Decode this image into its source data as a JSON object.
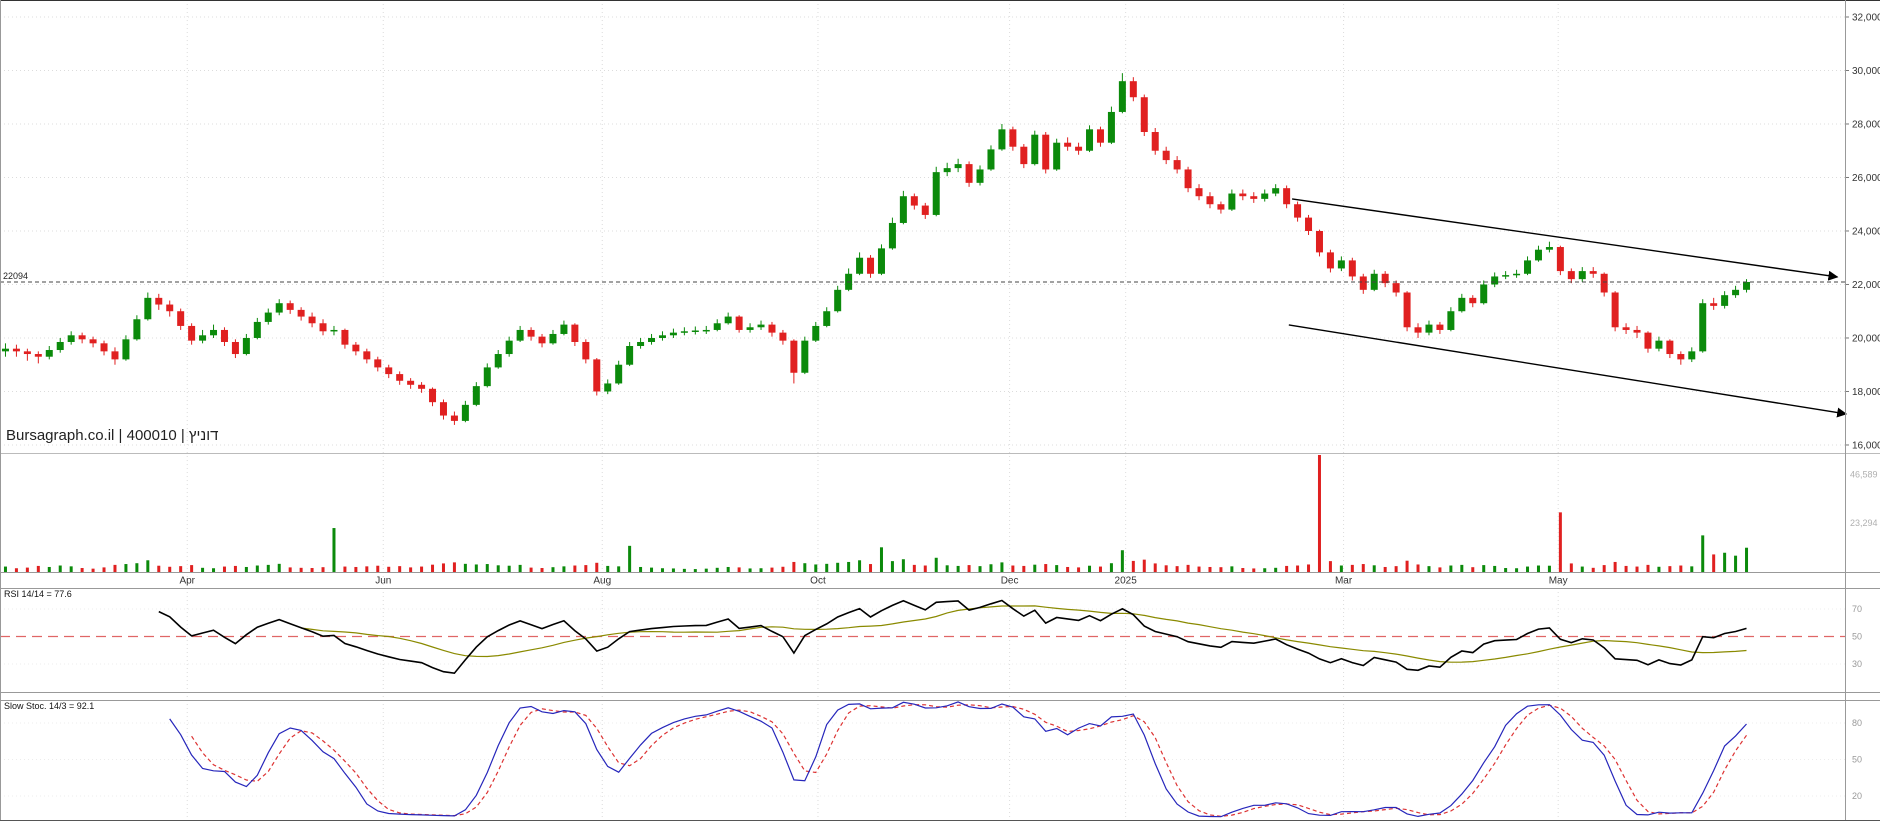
{
  "header": {
    "title": "Bursagraph.co.il | 400010 | דוניץ"
  },
  "colors": {
    "up": "#0b8a0b",
    "down": "#e02020",
    "rsi_line": "#000000",
    "rsi_signal": "#8a8a00",
    "rsi_mid": "#e06666",
    "stoch_k": "#2626bb",
    "stoch_d": "#dd3333",
    "trend": "#000000",
    "grid": "#dcdcdc",
    "marker_line": "#444444"
  },
  "chart_data": {
    "type": "candlestick",
    "title": "Bursagraph.co.il | 400010 | דוניץ",
    "symbol": "400010",
    "security_name": "דוניץ",
    "last_price": 22094,
    "period": "Mar 2024 – Jun 2025, daily candles",
    "ylim": [
      15700,
      32635
    ],
    "panels": [
      "price",
      "volume",
      "rsi",
      "slow_stochastic"
    ],
    "price_axis": [
      {
        "text": "32,000",
        "value": 32000
      },
      {
        "text": "30,000",
        "value": 30000
      },
      {
        "text": "28,000",
        "value": 28000
      },
      {
        "text": "26,000",
        "value": 26000
      },
      {
        "text": "24,000",
        "value": 24000
      },
      {
        "text": "22,000",
        "value": 22000
      },
      {
        "text": "20,000",
        "value": 20000
      },
      {
        "text": "18,000",
        "value": 18000
      },
      {
        "text": "16,000",
        "value": 16000
      }
    ],
    "x_axis": [
      {
        "text": "Apr",
        "i": 16.6
      },
      {
        "text": "Jun",
        "i": 34.5
      },
      {
        "text": "Aug",
        "i": 54.5
      },
      {
        "text": "Oct",
        "i": 74.2
      },
      {
        "text": "Dec",
        "i": 91.7
      },
      {
        "text": "2025",
        "i": 102.3
      },
      {
        "text": "Mar",
        "i": 122.2
      },
      {
        "text": "May",
        "i": 141.8
      }
    ],
    "volume_axis": [
      {
        "text": "46,589",
        "value": 46589
      },
      {
        "text": "23,294",
        "value": 23294
      }
    ],
    "rsi_axis": [
      {
        "text": "70",
        "value": 70
      },
      {
        "text": "50",
        "value": 50
      },
      {
        "text": "30",
        "value": 30
      }
    ],
    "stoch_axis": [
      {
        "text": "80",
        "value": 80
      },
      {
        "text": "50",
        "value": 50
      },
      {
        "text": "20",
        "value": 20
      }
    ],
    "indicators": {
      "rsi": {
        "label": "RSI 14/14 = 77.6",
        "period": 14,
        "signal": 14,
        "last": 77.6
      },
      "slow_stochastic": {
        "label": "Slow Stoc. 14/3 = 92.1",
        "k": 14,
        "d": 3,
        "last": 92.1
      }
    },
    "price_marker": {
      "text": "22094",
      "value": 22094
    },
    "trendlines": [
      {
        "i1": 117.5,
        "p1": 25196,
        "i2": 167.3,
        "p2": 22280,
        "arrow": true
      },
      {
        "i1": 117.2,
        "p1": 20486,
        "i2": 168.1,
        "p2": 17159,
        "arrow": true
      }
    ],
    "candles": [
      [
        19500,
        19800,
        19300,
        19600,
        2600
      ],
      [
        19600,
        19750,
        19300,
        19500,
        1800
      ],
      [
        19500,
        19600,
        19150,
        19400,
        2100
      ],
      [
        19400,
        19500,
        19050,
        19300,
        2900
      ],
      [
        19300,
        19700,
        19200,
        19550,
        2400
      ],
      [
        19550,
        20000,
        19450,
        19850,
        3100
      ],
      [
        19850,
        20250,
        19750,
        20100,
        2700
      ],
      [
        20100,
        20200,
        19800,
        19950,
        1900
      ],
      [
        19950,
        20050,
        19650,
        19800,
        1600
      ],
      [
        19800,
        19900,
        19350,
        19500,
        2200
      ],
      [
        19500,
        19650,
        19000,
        19200,
        3400
      ],
      [
        19200,
        20100,
        19150,
        19950,
        3800
      ],
      [
        19950,
        20850,
        19900,
        20700,
        4200
      ],
      [
        20700,
        21700,
        20650,
        21500,
        5600
      ],
      [
        21500,
        21650,
        21050,
        21250,
        3000
      ],
      [
        21250,
        21400,
        20800,
        21000,
        2500
      ],
      [
        21000,
        21100,
        20300,
        20450,
        2800
      ],
      [
        20450,
        20550,
        19750,
        19900,
        3300
      ],
      [
        19900,
        20300,
        19800,
        20100,
        2000
      ],
      [
        20100,
        20500,
        20000,
        20300,
        1800
      ],
      [
        20300,
        20400,
        19700,
        19850,
        2600
      ],
      [
        19850,
        19950,
        19250,
        19400,
        2900
      ],
      [
        19400,
        20150,
        19350,
        20000,
        2400
      ],
      [
        20000,
        20750,
        19950,
        20600,
        3100
      ],
      [
        20600,
        21100,
        20500,
        20950,
        3400
      ],
      [
        20950,
        21450,
        20850,
        21300,
        3900
      ],
      [
        21300,
        21400,
        20900,
        21050,
        2200
      ],
      [
        21050,
        21150,
        20650,
        20800,
        2000
      ],
      [
        20800,
        20950,
        20400,
        20550,
        1900
      ],
      [
        20550,
        20700,
        20100,
        20250,
        2300
      ],
      [
        20250,
        20450,
        20100,
        20300,
        21000
      ],
      [
        20300,
        20350,
        19600,
        19750,
        2600
      ],
      [
        19750,
        19850,
        19350,
        19500,
        2400
      ],
      [
        19500,
        19600,
        19050,
        19200,
        2700
      ],
      [
        19200,
        19300,
        18750,
        18900,
        3000
      ],
      [
        18900,
        19000,
        18500,
        18650,
        2500
      ],
      [
        18650,
        18750,
        18250,
        18400,
        2800
      ],
      [
        18400,
        18500,
        18100,
        18250,
        2200
      ],
      [
        18250,
        18350,
        17950,
        18100,
        2600
      ],
      [
        18100,
        18150,
        17450,
        17600,
        3500
      ],
      [
        17600,
        17700,
        16950,
        17100,
        4100
      ],
      [
        17100,
        17250,
        16750,
        16900,
        4600
      ],
      [
        16900,
        17650,
        16850,
        17500,
        3900
      ],
      [
        17500,
        18350,
        17450,
        18200,
        3600
      ],
      [
        18200,
        19050,
        18150,
        18900,
        3800
      ],
      [
        18900,
        19550,
        18850,
        19400,
        3200
      ],
      [
        19400,
        20050,
        19300,
        19900,
        3000
      ],
      [
        19900,
        20450,
        19850,
        20300,
        3400
      ],
      [
        20300,
        20400,
        19900,
        20050,
        2100
      ],
      [
        20050,
        20150,
        19650,
        19800,
        1900
      ],
      [
        19800,
        20300,
        19750,
        20150,
        2300
      ],
      [
        20150,
        20650,
        20100,
        20500,
        2700
      ],
      [
        20500,
        20550,
        19700,
        19850,
        3100
      ],
      [
        19850,
        19950,
        19050,
        19200,
        3300
      ],
      [
        19200,
        19250,
        17850,
        18000,
        4400
      ],
      [
        18000,
        18450,
        17900,
        18300,
        2900
      ],
      [
        18300,
        19150,
        18250,
        19000,
        2700
      ],
      [
        19000,
        19850,
        18950,
        19700,
        12500
      ],
      [
        19700,
        20000,
        19600,
        19850,
        2400
      ],
      [
        19850,
        20150,
        19750,
        20000,
        2100
      ],
      [
        20000,
        20250,
        19900,
        20100,
        1800
      ],
      [
        20100,
        20350,
        20000,
        20200,
        1700
      ],
      [
        20200,
        20400,
        20100,
        20250,
        1500
      ],
      [
        20250,
        20430,
        20130,
        20280,
        1400
      ],
      [
        20280,
        20450,
        20150,
        20300,
        1600
      ],
      [
        20300,
        20700,
        20250,
        20550,
        2000
      ],
      [
        20550,
        20950,
        20500,
        20800,
        2400
      ],
      [
        20800,
        20850,
        20200,
        20300,
        2200
      ],
      [
        20300,
        20550,
        20200,
        20400,
        1700
      ],
      [
        20400,
        20650,
        20300,
        20500,
        1800
      ],
      [
        20500,
        20600,
        20050,
        20200,
        2100
      ],
      [
        20200,
        20300,
        19750,
        19900,
        2500
      ],
      [
        19900,
        19950,
        18300,
        18700,
        4800
      ],
      [
        18700,
        20050,
        18650,
        19900,
        4200
      ],
      [
        19900,
        20600,
        19850,
        20450,
        3600
      ],
      [
        20450,
        21150,
        20400,
        21000,
        3900
      ],
      [
        21000,
        21950,
        20950,
        21800,
        4400
      ],
      [
        21800,
        22600,
        21750,
        22400,
        4800
      ],
      [
        22400,
        23200,
        22350,
        23000,
        5600
      ],
      [
        23000,
        23100,
        22250,
        22400,
        3800
      ],
      [
        22400,
        23500,
        22350,
        23350,
        11800
      ],
      [
        23350,
        24500,
        23300,
        24300,
        5200
      ],
      [
        24300,
        25500,
        24250,
        25300,
        6100
      ],
      [
        25300,
        25400,
        24800,
        24950,
        3400
      ],
      [
        24950,
        25050,
        24450,
        24600,
        3100
      ],
      [
        24600,
        26400,
        24550,
        26200,
        6800
      ],
      [
        26200,
        26550,
        26050,
        26350,
        3200
      ],
      [
        26350,
        26700,
        26200,
        26500,
        2900
      ],
      [
        26500,
        26600,
        25650,
        25800,
        3300
      ],
      [
        25800,
        26450,
        25700,
        26300,
        2800
      ],
      [
        26300,
        27200,
        26250,
        27050,
        3700
      ],
      [
        27050,
        28000,
        27000,
        27800,
        4600
      ],
      [
        27800,
        27900,
        27000,
        27150,
        3100
      ],
      [
        27150,
        27250,
        26350,
        26500,
        2900
      ],
      [
        26500,
        27750,
        26450,
        27600,
        3500
      ],
      [
        27600,
        27700,
        26150,
        26300,
        3800
      ],
      [
        26300,
        27450,
        26250,
        27300,
        3300
      ],
      [
        27300,
        27500,
        27000,
        27150,
        2400
      ],
      [
        27150,
        27300,
        26850,
        27000,
        2200
      ],
      [
        27000,
        27950,
        26950,
        27800,
        3000
      ],
      [
        27800,
        27900,
        27150,
        27300,
        2600
      ],
      [
        27300,
        28650,
        27250,
        28450,
        4200
      ],
      [
        28450,
        29900,
        28400,
        29600,
        10400
      ],
      [
        29600,
        29750,
        28850,
        29000,
        5300
      ],
      [
        29000,
        29100,
        27550,
        27700,
        5900
      ],
      [
        27700,
        27850,
        26850,
        27000,
        4100
      ],
      [
        27000,
        27150,
        26500,
        26650,
        3200
      ],
      [
        26650,
        26800,
        26150,
        26300,
        2800
      ],
      [
        26300,
        26400,
        25450,
        25600,
        3400
      ],
      [
        25600,
        25750,
        25150,
        25300,
        2600
      ],
      [
        25300,
        25450,
        24850,
        25000,
        2400
      ],
      [
        25000,
        25100,
        24650,
        24800,
        2300
      ],
      [
        24800,
        25550,
        24750,
        25400,
        2700
      ],
      [
        25400,
        25550,
        25150,
        25300,
        1900
      ],
      [
        25300,
        25450,
        25050,
        25200,
        1700
      ],
      [
        25200,
        25550,
        25100,
        25400,
        1800
      ],
      [
        25400,
        25750,
        25300,
        25600,
        2000
      ],
      [
        25600,
        25700,
        24850,
        25000,
        2900
      ],
      [
        25000,
        25100,
        24350,
        24500,
        3100
      ],
      [
        24500,
        24600,
        23850,
        24000,
        3600
      ],
      [
        24000,
        24050,
        23050,
        23200,
        96000
      ],
      [
        23200,
        23300,
        22450,
        22600,
        5200
      ],
      [
        22600,
        23050,
        22500,
        22900,
        3100
      ],
      [
        22900,
        23000,
        22150,
        22300,
        3400
      ],
      [
        22300,
        22400,
        21650,
        21800,
        3800
      ],
      [
        21800,
        22550,
        21750,
        22400,
        3200
      ],
      [
        22400,
        22500,
        21900,
        22050,
        2400
      ],
      [
        22050,
        22150,
        21550,
        21700,
        2800
      ],
      [
        21700,
        21750,
        20250,
        20400,
        5400
      ],
      [
        20400,
        20550,
        20000,
        20200,
        3600
      ],
      [
        20200,
        20650,
        20100,
        20500,
        2800
      ],
      [
        20500,
        20600,
        20150,
        20300,
        2200
      ],
      [
        20300,
        21150,
        20250,
        21000,
        3100
      ],
      [
        21000,
        21650,
        20950,
        21500,
        3400
      ],
      [
        21500,
        21600,
        21150,
        21300,
        2300
      ],
      [
        21300,
        22150,
        21250,
        22000,
        3300
      ],
      [
        22000,
        22450,
        21900,
        22300,
        2900
      ],
      [
        22300,
        22500,
        22200,
        22350,
        1900
      ],
      [
        22350,
        22550,
        22250,
        22400,
        1800
      ],
      [
        22400,
        23050,
        22350,
        22900,
        2600
      ],
      [
        22900,
        23450,
        22850,
        23300,
        3100
      ],
      [
        23300,
        23600,
        23200,
        23400,
        3000
      ],
      [
        23400,
        23450,
        22350,
        22500,
        28500
      ],
      [
        22500,
        22600,
        22050,
        22200,
        4100
      ],
      [
        22200,
        22650,
        22100,
        22500,
        2600
      ],
      [
        22500,
        22650,
        22250,
        22400,
        2000
      ],
      [
        22400,
        22450,
        21550,
        21700,
        3300
      ],
      [
        21700,
        21750,
        20250,
        20400,
        4800
      ],
      [
        20400,
        20550,
        20150,
        20300,
        2900
      ],
      [
        20300,
        20450,
        20000,
        20200,
        2600
      ],
      [
        20200,
        20250,
        19450,
        19600,
        3400
      ],
      [
        19600,
        20050,
        19500,
        19900,
        2500
      ],
      [
        19900,
        19950,
        19250,
        19400,
        2800
      ],
      [
        19400,
        19500,
        19000,
        19200,
        3100
      ],
      [
        19200,
        19650,
        19100,
        19500,
        2700
      ],
      [
        19500,
        21450,
        19450,
        21300,
        17500
      ],
      [
        21300,
        21500,
        21050,
        21200,
        8400
      ],
      [
        21200,
        21750,
        21100,
        21600,
        9200
      ],
      [
        21600,
        21950,
        21500,
        21800,
        7800
      ],
      [
        21800,
        22200,
        21700,
        22094,
        11600
      ]
    ]
  }
}
